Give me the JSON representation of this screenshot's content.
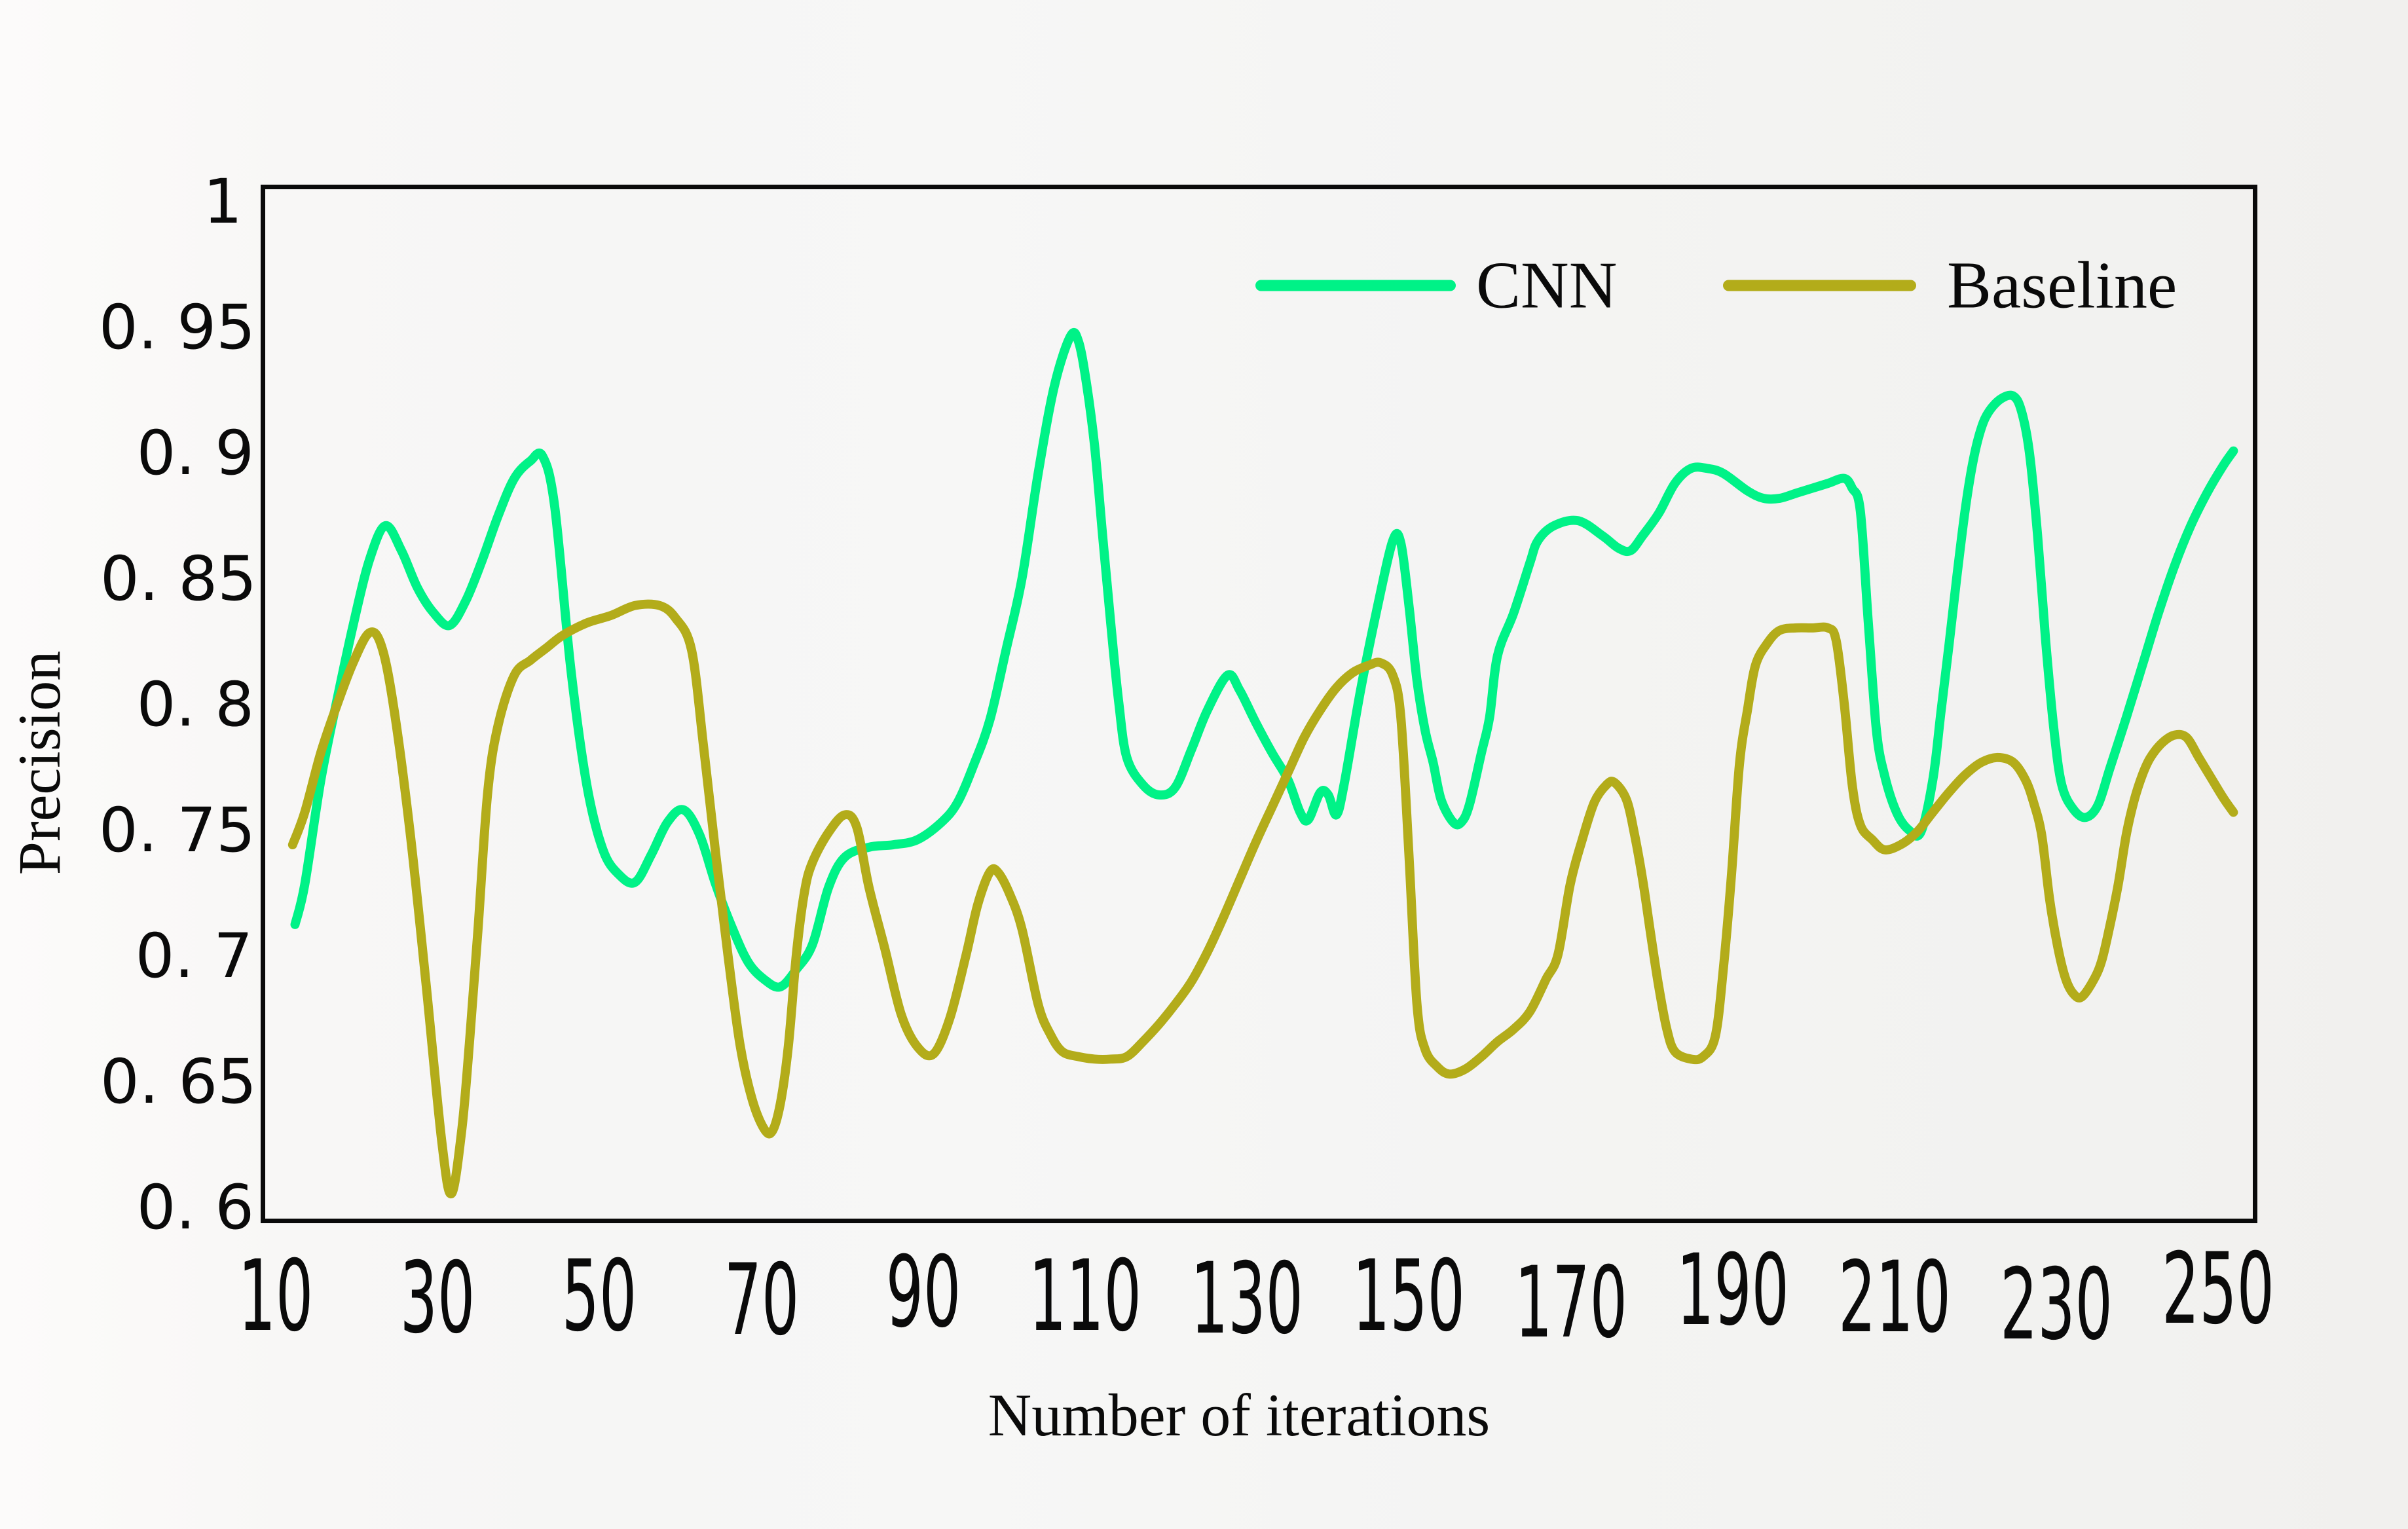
{
  "figure": {
    "x_axis_title": "Number of iterations",
    "y_axis_title": "Precision"
  },
  "legend": {
    "items": [
      {
        "label": "CNN",
        "color": "#00F287"
      },
      {
        "label": "Baseline",
        "color": "#B3AC1A"
      }
    ]
  },
  "axes": {
    "x_tick_labels": [
      "10",
      "30",
      "50",
      "70",
      "90",
      "110",
      "130",
      "150",
      "170",
      "190",
      "210",
      "230",
      "250"
    ],
    "y_tick_labels": [
      "1",
      "0. 95",
      "0. 9",
      "0. 85",
      "0. 8",
      "0. 75",
      "0. 7",
      "0. 65",
      "0. 6"
    ]
  },
  "chart_data": {
    "type": "line",
    "title": "",
    "xlabel": "Number of iterations",
    "ylabel": "Precision",
    "xlim": [
      10,
      250
    ],
    "ylim": [
      0.6,
      1.0
    ],
    "x_tick_step": 20,
    "y_tick_step": 0.05,
    "grid": false,
    "legend_position": "top-inside",
    "series": [
      {
        "name": "CNN",
        "color": "#00F287",
        "points": [
          [
            11.8,
            0.712
          ],
          [
            13,
            0.728
          ],
          [
            15,
            0.77
          ],
          [
            17,
            0.802
          ],
          [
            19,
            0.832
          ],
          [
            21,
            0.858
          ],
          [
            23,
            0.872
          ],
          [
            25,
            0.862
          ],
          [
            27,
            0.847
          ],
          [
            29,
            0.837
          ],
          [
            31,
            0.832
          ],
          [
            33,
            0.842
          ],
          [
            35,
            0.858
          ],
          [
            37,
            0.876
          ],
          [
            39,
            0.891
          ],
          [
            41,
            0.898
          ],
          [
            42.5,
            0.9
          ],
          [
            44,
            0.88
          ],
          [
            46,
            0.815
          ],
          [
            48,
            0.768
          ],
          [
            50,
            0.742
          ],
          [
            52,
            0.732
          ],
          [
            54,
            0.729
          ],
          [
            56,
            0.74
          ],
          [
            58,
            0.753
          ],
          [
            60,
            0.758
          ],
          [
            62,
            0.748
          ],
          [
            64,
            0.728
          ],
          [
            66,
            0.711
          ],
          [
            68,
            0.697
          ],
          [
            70,
            0.69
          ],
          [
            72,
            0.687
          ],
          [
            74,
            0.694
          ],
          [
            76,
            0.704
          ],
          [
            78,
            0.727
          ],
          [
            80,
            0.739
          ],
          [
            83,
            0.743
          ],
          [
            86,
            0.744
          ],
          [
            89,
            0.746
          ],
          [
            92,
            0.753
          ],
          [
            94,
            0.761
          ],
          [
            96,
            0.776
          ],
          [
            98,
            0.794
          ],
          [
            100,
            0.822
          ],
          [
            102,
            0.851
          ],
          [
            104,
            0.893
          ],
          [
            106,
            0.928
          ],
          [
            108,
            0.948
          ],
          [
            109,
            0.946
          ],
          [
            110,
            0.929
          ],
          [
            111,
            0.904
          ],
          [
            112,
            0.868
          ],
          [
            113,
            0.833
          ],
          [
            114,
            0.801
          ],
          [
            115,
            0.779
          ],
          [
            117,
            0.768
          ],
          [
            119,
            0.764
          ],
          [
            121,
            0.767
          ],
          [
            123,
            0.782
          ],
          [
            125,
            0.798
          ],
          [
            127.5,
            0.812
          ],
          [
            129,
            0.806
          ],
          [
            131,
            0.793
          ],
          [
            133,
            0.781
          ],
          [
            135,
            0.77
          ],
          [
            136.5,
            0.757
          ],
          [
            137.5,
            0.754
          ],
          [
            139,
            0.765
          ],
          [
            140,
            0.764
          ],
          [
            141,
            0.756
          ],
          [
            142,
            0.769
          ],
          [
            144,
            0.806
          ],
          [
            146,
            0.838
          ],
          [
            148,
            0.866
          ],
          [
            149,
            0.865
          ],
          [
            150,
            0.84
          ],
          [
            151,
            0.81
          ],
          [
            152,
            0.79
          ],
          [
            153,
            0.777
          ],
          [
            154,
            0.762
          ],
          [
            155.5,
            0.753
          ],
          [
            156.5,
            0.753
          ],
          [
            157.5,
            0.76
          ],
          [
            159,
            0.781
          ],
          [
            160,
            0.795
          ],
          [
            161,
            0.82
          ],
          [
            163,
            0.837
          ],
          [
            165,
            0.857
          ],
          [
            166,
            0.866
          ],
          [
            168,
            0.872
          ],
          [
            171,
            0.874
          ],
          [
            174,
            0.868
          ],
          [
            176,
            0.863
          ],
          [
            177.5,
            0.862
          ],
          [
            179,
            0.868
          ],
          [
            181,
            0.877
          ],
          [
            183,
            0.889
          ],
          [
            185,
            0.895
          ],
          [
            187,
            0.895
          ],
          [
            189,
            0.893
          ],
          [
            192,
            0.886
          ],
          [
            194,
            0.883
          ],
          [
            196,
            0.883
          ],
          [
            198,
            0.885
          ],
          [
            200,
            0.887
          ],
          [
            202,
            0.889
          ],
          [
            204,
            0.891
          ],
          [
            205,
            0.887
          ],
          [
            206,
            0.878
          ],
          [
            207,
            0.833
          ],
          [
            208,
            0.79
          ],
          [
            209,
            0.772
          ],
          [
            210.5,
            0.757
          ],
          [
            212,
            0.75
          ],
          [
            213.5,
            0.749
          ],
          [
            215,
            0.77
          ],
          [
            216,
            0.797
          ],
          [
            217,
            0.824
          ],
          [
            218,
            0.852
          ],
          [
            219,
            0.878
          ],
          [
            220,
            0.898
          ],
          [
            221,
            0.911
          ],
          [
            222,
            0.918
          ],
          [
            223.5,
            0.923
          ],
          [
            225,
            0.924
          ],
          [
            226,
            0.918
          ],
          [
            227,
            0.901
          ],
          [
            228,
            0.868
          ],
          [
            229,
            0.826
          ],
          [
            230,
            0.791
          ],
          [
            231,
            0.768
          ],
          [
            232.5,
            0.758
          ],
          [
            234,
            0.755
          ],
          [
            235.5,
            0.76
          ],
          [
            237,
            0.775
          ],
          [
            239,
            0.795
          ],
          [
            241,
            0.816
          ],
          [
            243,
            0.837
          ],
          [
            245,
            0.856
          ],
          [
            247,
            0.872
          ],
          [
            249,
            0.885
          ],
          [
            251,
            0.896
          ],
          [
            252.3,
            0.902
          ]
        ]
      },
      {
        "name": "Baseline",
        "color": "#B3AC1A",
        "points": [
          [
            11.5,
            0.744
          ],
          [
            13,
            0.757
          ],
          [
            15,
            0.781
          ],
          [
            17,
            0.8
          ],
          [
            19,
            0.817
          ],
          [
            21,
            0.829
          ],
          [
            22.5,
            0.824
          ],
          [
            24,
            0.8
          ],
          [
            26,
            0.751
          ],
          [
            28,
            0.69
          ],
          [
            30,
            0.625
          ],
          [
            31.2,
            0.604
          ],
          [
            32.5,
            0.63
          ],
          [
            33.5,
            0.667
          ],
          [
            34.5,
            0.71
          ],
          [
            35.7,
            0.765
          ],
          [
            37,
            0.792
          ],
          [
            39,
            0.812
          ],
          [
            41,
            0.818
          ],
          [
            43,
            0.823
          ],
          [
            45,
            0.828
          ],
          [
            48,
            0.833
          ],
          [
            51,
            0.836
          ],
          [
            54,
            0.84
          ],
          [
            57,
            0.84
          ],
          [
            59,
            0.835
          ],
          [
            61,
            0.822
          ],
          [
            62.5,
            0.783
          ],
          [
            64,
            0.74
          ],
          [
            65.5,
            0.7
          ],
          [
            67,
            0.664
          ],
          [
            68.5,
            0.642
          ],
          [
            70,
            0.63
          ],
          [
            71,
            0.629
          ],
          [
            72,
            0.64
          ],
          [
            73,
            0.663
          ],
          [
            74,
            0.7
          ],
          [
            75,
            0.725
          ],
          [
            76,
            0.737
          ],
          [
            78,
            0.749
          ],
          [
            80,
            0.756
          ],
          [
            81.5,
            0.751
          ],
          [
            83,
            0.727
          ],
          [
            85,
            0.702
          ],
          [
            87,
            0.676
          ],
          [
            89,
            0.663
          ],
          [
            91,
            0.66
          ],
          [
            93,
            0.674
          ],
          [
            95,
            0.699
          ],
          [
            96.5,
            0.72
          ],
          [
            98,
            0.733
          ],
          [
            99,
            0.733
          ],
          [
            100.5,
            0.724
          ],
          [
            102,
            0.71
          ],
          [
            104,
            0.68
          ],
          [
            105.5,
            0.668
          ],
          [
            107,
            0.661
          ],
          [
            109,
            0.659
          ],
          [
            111,
            0.658
          ],
          [
            113,
            0.658
          ],
          [
            115,
            0.659
          ],
          [
            117,
            0.665
          ],
          [
            119,
            0.672
          ],
          [
            121,
            0.68
          ],
          [
            123,
            0.689
          ],
          [
            125,
            0.701
          ],
          [
            127,
            0.715
          ],
          [
            129,
            0.73
          ],
          [
            131,
            0.745
          ],
          [
            133,
            0.759
          ],
          [
            135,
            0.773
          ],
          [
            137,
            0.787
          ],
          [
            139,
            0.798
          ],
          [
            141,
            0.807
          ],
          [
            143,
            0.813
          ],
          [
            145,
            0.816
          ],
          [
            146.5,
            0.817
          ],
          [
            148,
            0.812
          ],
          [
            149,
            0.795
          ],
          [
            150,
            0.74
          ],
          [
            151,
            0.68
          ],
          [
            152,
            0.662
          ],
          [
            153.5,
            0.655
          ],
          [
            155,
            0.652
          ],
          [
            157,
            0.654
          ],
          [
            159,
            0.659
          ],
          [
            161,
            0.665
          ],
          [
            163,
            0.67
          ],
          [
            165,
            0.677
          ],
          [
            167,
            0.69
          ],
          [
            168.5,
            0.7
          ],
          [
            170,
            0.728
          ],
          [
            171.5,
            0.746
          ],
          [
            173,
            0.761
          ],
          [
            174.5,
            0.768
          ],
          [
            175.5,
            0.769
          ],
          [
            177,
            0.762
          ],
          [
            178,
            0.748
          ],
          [
            179,
            0.73
          ],
          [
            180,
            0.708
          ],
          [
            181,
            0.687
          ],
          [
            182,
            0.67
          ],
          [
            183,
            0.661
          ],
          [
            185,
            0.658
          ],
          [
            186.5,
            0.659
          ],
          [
            188,
            0.667
          ],
          [
            189,
            0.694
          ],
          [
            190,
            0.731
          ],
          [
            191,
            0.776
          ],
          [
            192,
            0.798
          ],
          [
            193,
            0.816
          ],
          [
            194.5,
            0.825
          ],
          [
            196,
            0.83
          ],
          [
            198,
            0.831
          ],
          [
            200,
            0.831
          ],
          [
            202,
            0.831
          ],
          [
            203,
            0.826
          ],
          [
            204,
            0.801
          ],
          [
            205,
            0.768
          ],
          [
            206,
            0.752
          ],
          [
            207.5,
            0.746
          ],
          [
            209,
            0.742
          ],
          [
            211,
            0.744
          ],
          [
            213,
            0.749
          ],
          [
            215,
            0.757
          ],
          [
            217,
            0.765
          ],
          [
            219,
            0.772
          ],
          [
            221,
            0.777
          ],
          [
            223,
            0.779
          ],
          [
            225,
            0.777
          ],
          [
            226.5,
            0.77
          ],
          [
            227.5,
            0.761
          ],
          [
            228.5,
            0.748
          ],
          [
            229.5,
            0.722
          ],
          [
            230.5,
            0.703
          ],
          [
            231.5,
            0.69
          ],
          [
            232.5,
            0.684
          ],
          [
            233.5,
            0.683
          ],
          [
            235,
            0.69
          ],
          [
            236,
            0.698
          ],
          [
            237,
            0.712
          ],
          [
            238,
            0.728
          ],
          [
            239,
            0.748
          ],
          [
            240,
            0.762
          ],
          [
            241,
            0.772
          ],
          [
            242,
            0.779
          ],
          [
            243.5,
            0.785
          ],
          [
            245,
            0.788
          ],
          [
            246.5,
            0.787
          ],
          [
            248,
            0.779
          ],
          [
            249.5,
            0.771
          ],
          [
            251,
            0.763
          ],
          [
            252.3,
            0.757
          ]
        ]
      }
    ]
  }
}
